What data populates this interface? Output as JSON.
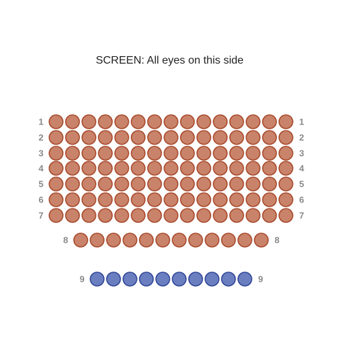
{
  "screen": {
    "label": "SCREEN: All eyes on this side"
  },
  "rows": [
    {
      "label": "1",
      "seats": 15,
      "color": "#c8836a",
      "stroke": "#a8482a"
    },
    {
      "label": "2",
      "seats": 15,
      "color": "#c8836a",
      "stroke": "#a8482a"
    },
    {
      "label": "3",
      "seats": 15,
      "color": "#c8836a",
      "stroke": "#a8482a"
    },
    {
      "label": "4",
      "seats": 15,
      "color": "#c8836a",
      "stroke": "#a8482a"
    },
    {
      "label": "5",
      "seats": 15,
      "color": "#c8836a",
      "stroke": "#a8482a"
    },
    {
      "label": "6",
      "seats": 15,
      "color": "#c8836a",
      "stroke": "#a8482a"
    },
    {
      "label": "7",
      "seats": 15,
      "color": "#c8836a",
      "stroke": "#a8482a"
    },
    {
      "label": "8",
      "seats": 12,
      "color": "#c8836a",
      "stroke": "#a8482a"
    },
    {
      "label": "9",
      "seats": 10,
      "color": "#6b7fc0",
      "stroke": "#2f4597"
    }
  ]
}
